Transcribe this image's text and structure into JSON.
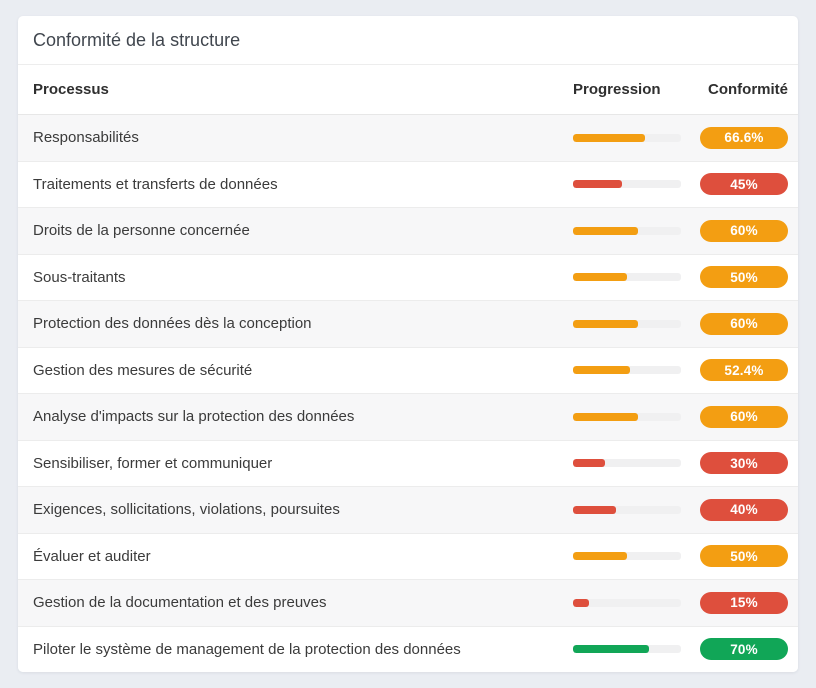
{
  "card": {
    "title": "Conformité de la structure",
    "columns": {
      "process": "Processus",
      "progression": "Progression",
      "conformity": "Conformité"
    },
    "rows": [
      {
        "process": "Responsabilités",
        "progress_pct": 66.6,
        "conformity_label": "66.6%",
        "status": "warning"
      },
      {
        "process": "Traitements et transferts de données",
        "progress_pct": 45,
        "conformity_label": "45%",
        "status": "danger"
      },
      {
        "process": "Droits de la personne concernée",
        "progress_pct": 60,
        "conformity_label": "60%",
        "status": "warning"
      },
      {
        "process": "Sous-traitants",
        "progress_pct": 50,
        "conformity_label": "50%",
        "status": "warning"
      },
      {
        "process": "Protection des données dès la conception",
        "progress_pct": 60,
        "conformity_label": "60%",
        "status": "warning"
      },
      {
        "process": "Gestion des mesures de sécurité",
        "progress_pct": 52.4,
        "conformity_label": "52.4%",
        "status": "warning"
      },
      {
        "process": "Analyse d'impacts sur la protection des données",
        "progress_pct": 60,
        "conformity_label": "60%",
        "status": "warning"
      },
      {
        "process": "Sensibiliser, former et communiquer",
        "progress_pct": 30,
        "conformity_label": "30%",
        "status": "danger"
      },
      {
        "process": "Exigences, sollicitations, violations, poursuites",
        "progress_pct": 40,
        "conformity_label": "40%",
        "status": "danger"
      },
      {
        "process": "Évaluer et auditer",
        "progress_pct": 50,
        "conformity_label": "50%",
        "status": "warning"
      },
      {
        "process": "Gestion de la documentation et des preuves",
        "progress_pct": 15,
        "conformity_label": "15%",
        "status": "danger"
      },
      {
        "process": "Piloter le système de management de la protection des données",
        "progress_pct": 70,
        "conformity_label": "70%",
        "status": "success"
      }
    ]
  },
  "colors": {
    "danger": "#DE4F3D",
    "warning": "#F39E12",
    "success": "#11A657",
    "page_background": "#EAEDF2",
    "card_background": "#FFFFFF",
    "row_stripe": "#F7F7F8",
    "track": "#F0F0F1"
  }
}
